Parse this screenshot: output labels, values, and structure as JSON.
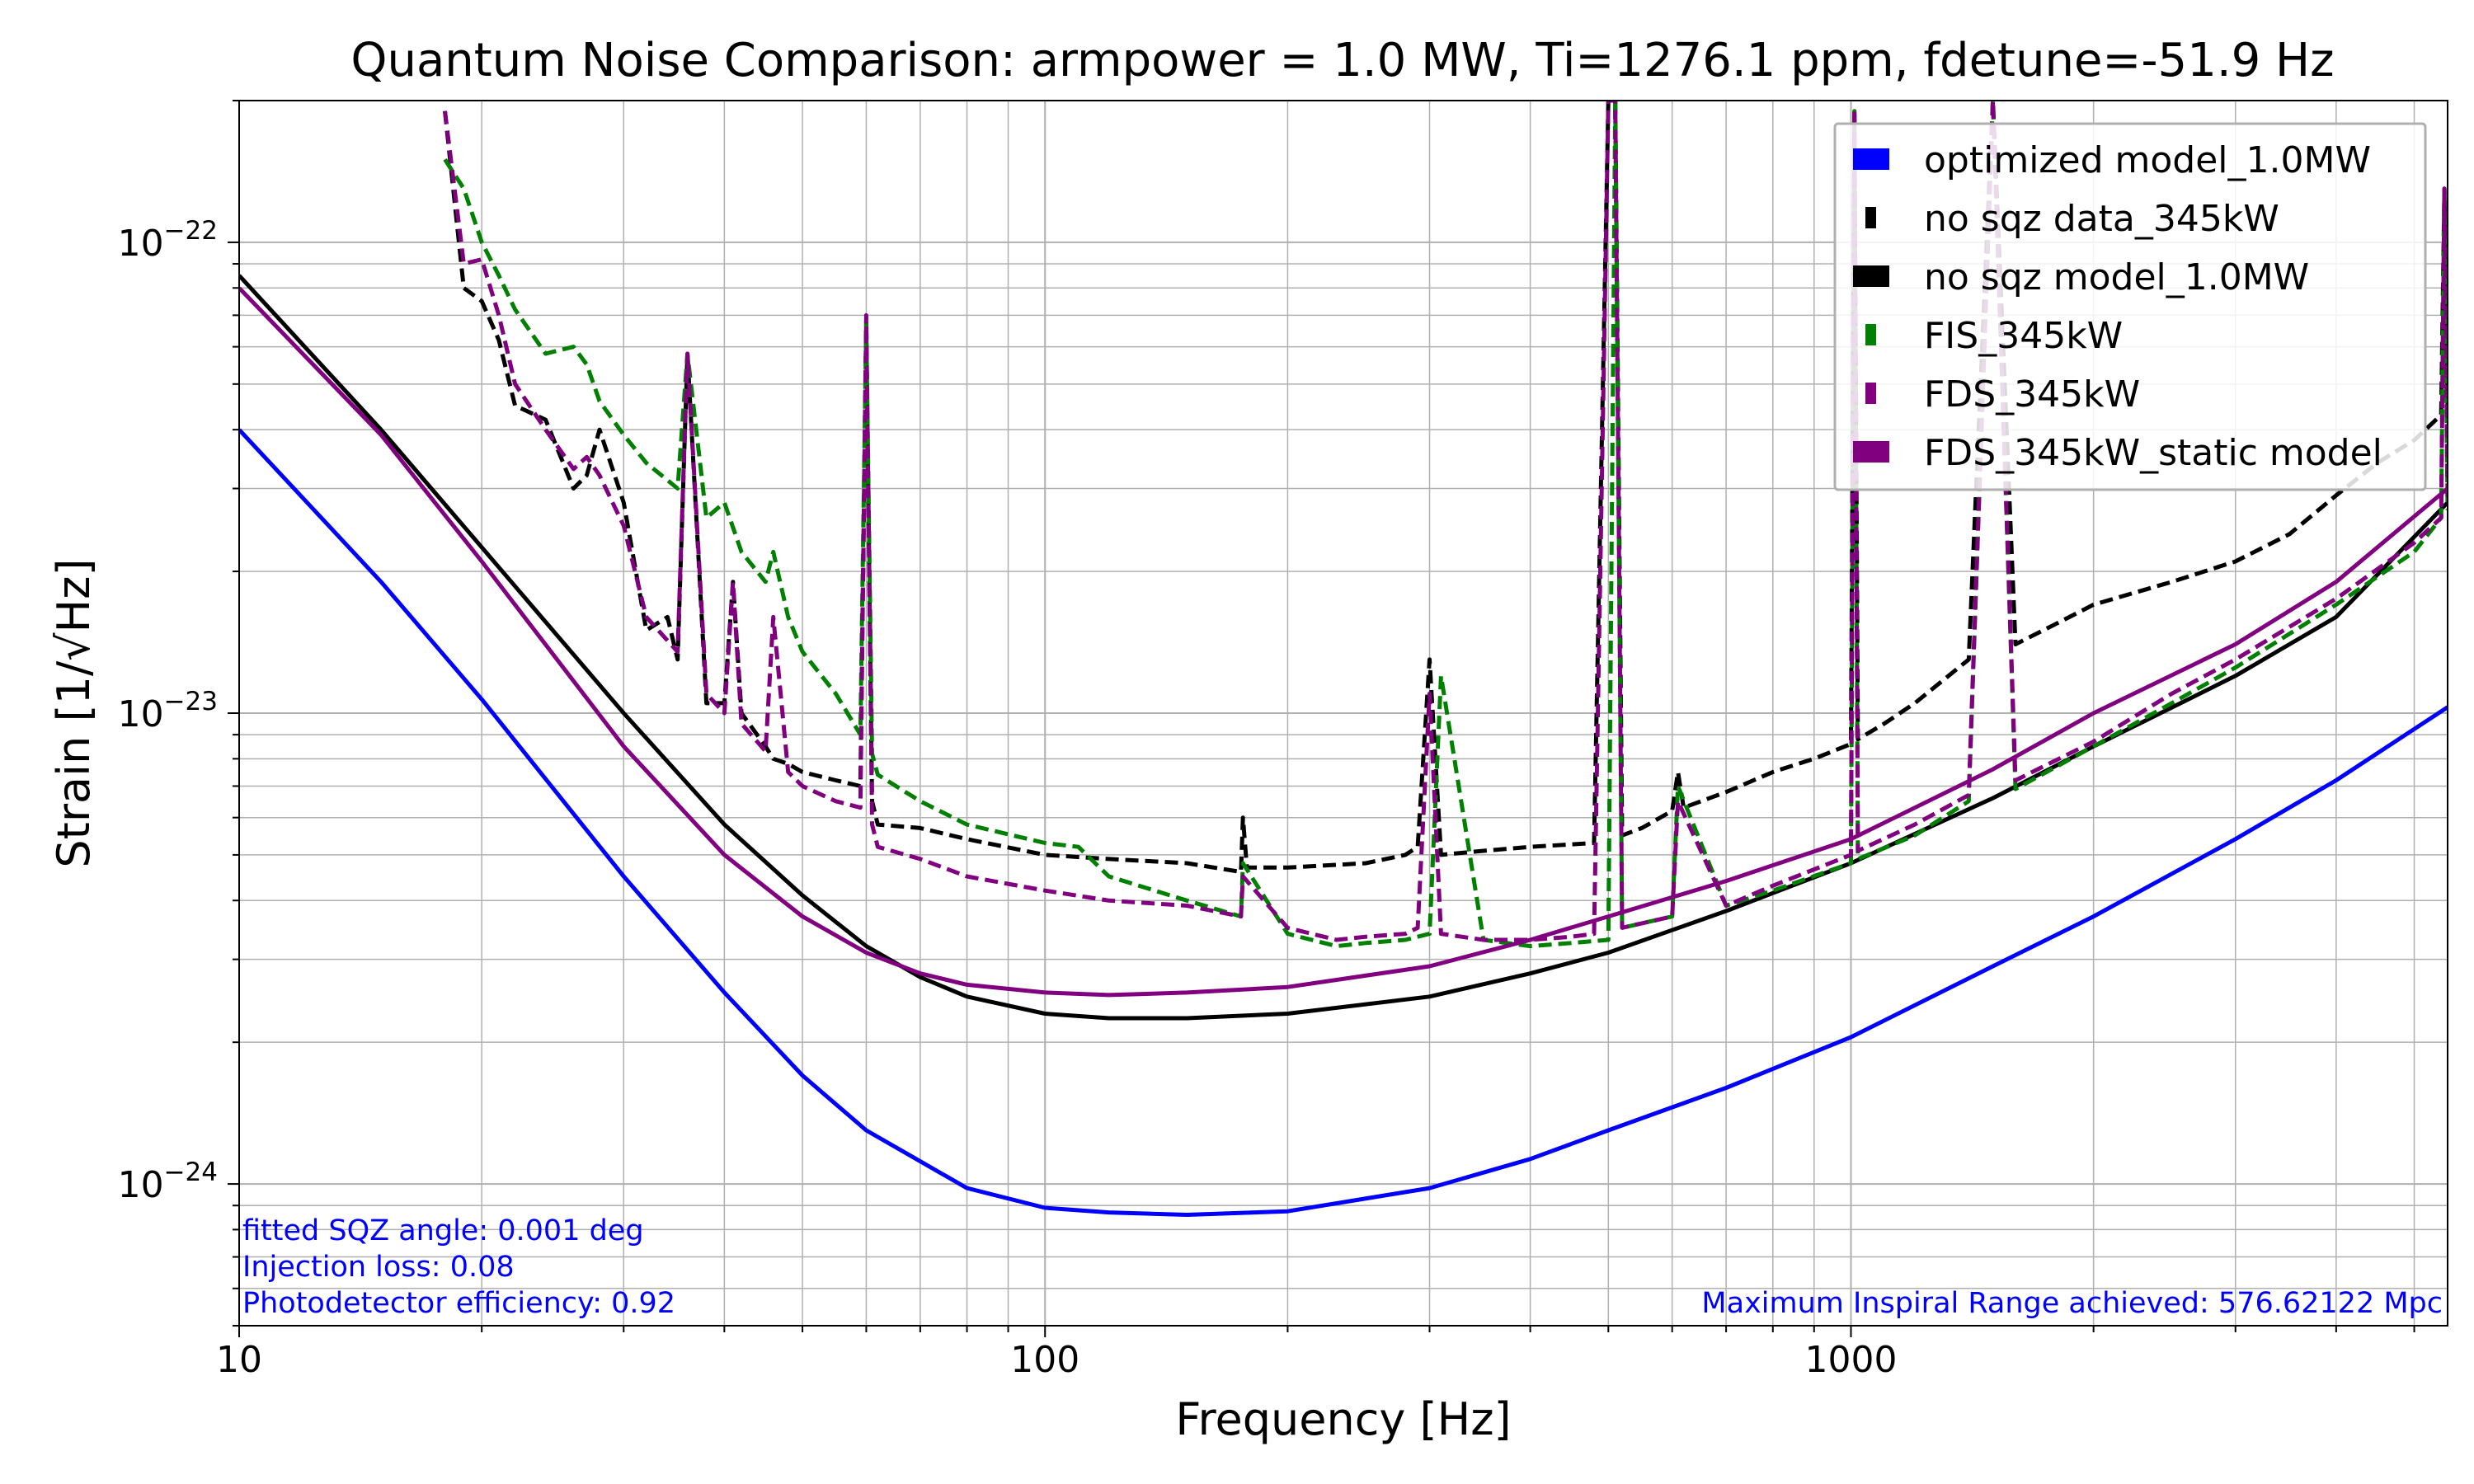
{
  "chart_data": {
    "type": "line",
    "title": "Quantum Noise Comparison: armpower = 1.0 MW, Ti=1276.1 ppm, fdetune=-51.9 Hz",
    "xlabel": "Frequency [Hz]",
    "ylabel": "Strain [1/√Hz]",
    "xscale": "log",
    "yscale": "log",
    "xlim": [
      10,
      5500
    ],
    "ylim": [
      5e-25,
      2e-22
    ],
    "grid": true,
    "legend_position": "top-right",
    "x_ticks": [
      {
        "value": 10,
        "label": "10"
      },
      {
        "value": 100,
        "label": "100"
      },
      {
        "value": 1000,
        "label": "1000"
      }
    ],
    "y_ticks": [
      {
        "value": 1e-24,
        "base": "10",
        "exp": "−24"
      },
      {
        "value": 1e-23,
        "base": "10",
        "exp": "−23"
      },
      {
        "value": 1e-22,
        "base": "10",
        "exp": "−22"
      }
    ],
    "series": [
      {
        "name": "optimized model_1.0MW",
        "color": "#0000ff",
        "style": "solid",
        "x": [
          10,
          15,
          20,
          30,
          40,
          50,
          60,
          80,
          100,
          120,
          150,
          200,
          300,
          400,
          500,
          700,
          1000,
          1500,
          2000,
          3000,
          4000,
          5500
        ],
        "y": [
          4e-23,
          1.9e-23,
          1.07e-23,
          4.5e-24,
          2.55e-24,
          1.7e-24,
          1.3e-24,
          9.8e-25,
          8.9e-25,
          8.7e-25,
          8.6e-25,
          8.75e-25,
          9.8e-25,
          1.13e-24,
          1.3e-24,
          1.6e-24,
          2.05e-24,
          2.9e-24,
          3.7e-24,
          5.4e-24,
          7.2e-24,
          1.03e-23
        ]
      },
      {
        "name": "no sqz data_345kW",
        "color": "#000000",
        "style": "dashed",
        "x": [
          18,
          19,
          20,
          21,
          22,
          24,
          26,
          27,
          28,
          30,
          32,
          34,
          35,
          36,
          38,
          40,
          41,
          42,
          45,
          46,
          48,
          50,
          55,
          59,
          60,
          61,
          62,
          70,
          80,
          100,
          120,
          150,
          175,
          176,
          178,
          200,
          250,
          280,
          290,
          300,
          310,
          350,
          400,
          480,
          500,
          510,
          520,
          550,
          600,
          610,
          620,
          700,
          800,
          900,
          1000,
          1010,
          1020,
          1100,
          1200,
          1400,
          1500,
          1600,
          1800,
          2000,
          2500,
          3000,
          3500,
          4000,
          4500,
          5000,
          5400,
          5450,
          5500
        ],
        "y": [
          1.9e-22,
          8e-23,
          7.5e-23,
          6.2e-23,
          4.5e-23,
          4.2e-23,
          3e-23,
          3.2e-23,
          4e-23,
          2.8e-23,
          1.5e-23,
          1.6e-23,
          1.3e-23,
          5.8e-23,
          1.05e-23,
          1.05e-23,
          1.9e-23,
          1e-23,
          8.5e-24,
          8e-24,
          7.8e-24,
          7.5e-24,
          7.2e-24,
          7e-24,
          6.7e-23,
          6.5e-24,
          5.8e-24,
          5.7e-24,
          5.4e-24,
          5e-24,
          4.9e-24,
          4.8e-24,
          4.6e-24,
          6e-24,
          4.7e-24,
          4.7e-24,
          4.8e-24,
          5e-24,
          5.2e-24,
          1.3e-23,
          5e-24,
          5.1e-24,
          5.2e-24,
          5.3e-24,
          2e-22,
          2e-22,
          5.5e-24,
          5.7e-24,
          6.2e-24,
          7.5e-24,
          6.3e-24,
          6.8e-24,
          7.5e-24,
          8e-24,
          8.6e-24,
          1.9e-22,
          8.8e-24,
          9.5e-24,
          1.05e-23,
          1.3e-23,
          2e-22,
          1.4e-23,
          1.55e-23,
          1.7e-23,
          1.9e-23,
          2.1e-23,
          2.4e-23,
          2.9e-23,
          3.4e-23,
          3.8e-23,
          4.3e-23,
          1.3e-22,
          4.5e-23
        ]
      },
      {
        "name": "no sqz model_1.0MW",
        "color": "#000000",
        "style": "solid",
        "x": [
          10,
          15,
          20,
          30,
          40,
          50,
          60,
          70,
          80,
          100,
          120,
          150,
          200,
          300,
          400,
          500,
          700,
          1000,
          1500,
          2000,
          3000,
          4000,
          5500
        ],
        "y": [
          8.5e-23,
          4e-23,
          2.25e-23,
          1e-23,
          5.8e-24,
          4.1e-24,
          3.2e-24,
          2.75e-24,
          2.5e-24,
          2.3e-24,
          2.25e-24,
          2.25e-24,
          2.3e-24,
          2.5e-24,
          2.8e-24,
          3.1e-24,
          3.8e-24,
          4.8e-24,
          6.6e-24,
          8.5e-24,
          1.2e-23,
          1.6e-23,
          2.8e-23
        ]
      },
      {
        "name": "FIS_345kW",
        "color": "#008000",
        "style": "dashed",
        "x": [
          18,
          19,
          20,
          21,
          22,
          24,
          26,
          27,
          28,
          30,
          32,
          35,
          36,
          38,
          40,
          42,
          45,
          46,
          48,
          50,
          55,
          59,
          60,
          61,
          62,
          70,
          80,
          100,
          110,
          120,
          150,
          175,
          176,
          200,
          230,
          250,
          280,
          300,
          310,
          350,
          400,
          450,
          500,
          510,
          520,
          600,
          610,
          700,
          800,
          1000,
          1010,
          1020,
          1200,
          1400,
          1500,
          1600,
          2000,
          2500,
          3000,
          4000,
          5000,
          5400,
          5450,
          5500
        ],
        "y": [
          1.5e-22,
          1.3e-22,
          1e-22,
          8.5e-23,
          7.2e-23,
          5.8e-23,
          6e-23,
          5.5e-23,
          4.6e-23,
          3.9e-23,
          3.4e-23,
          3e-23,
          5.8e-23,
          2.6e-23,
          2.8e-23,
          2.2e-23,
          1.9e-23,
          2.2e-23,
          1.6e-23,
          1.35e-23,
          1.1e-23,
          9e-24,
          6.8e-23,
          8.2e-24,
          7.4e-24,
          6.5e-24,
          5.8e-24,
          5.3e-24,
          5.2e-24,
          4.5e-24,
          4e-24,
          3.7e-24,
          4.8e-24,
          3.4e-24,
          3.2e-24,
          3.25e-24,
          3.3e-24,
          3.4e-24,
          1.2e-23,
          3.3e-24,
          3.2e-24,
          3.25e-24,
          3.3e-24,
          2e-22,
          3.5e-24,
          3.7e-24,
          7e-24,
          3.9e-24,
          4.2e-24,
          4.8e-24,
          1.9e-22,
          4.9e-24,
          5.5e-24,
          6.5e-24,
          2e-22,
          6.9e-24,
          8.5e-24,
          1.05e-23,
          1.25e-23,
          1.7e-23,
          2.2e-23,
          2.6e-23,
          1.3e-22,
          2.7e-23
        ]
      },
      {
        "name": "FDS_345kW",
        "color": "#800080",
        "style": "dashed",
        "x": [
          18,
          19,
          20,
          21,
          22,
          24,
          26,
          27,
          28,
          30,
          32,
          35,
          36,
          38,
          40,
          41,
          42,
          45,
          46,
          48,
          50,
          55,
          59,
          60,
          61,
          62,
          70,
          80,
          100,
          120,
          150,
          175,
          176,
          200,
          230,
          250,
          280,
          290,
          300,
          310,
          350,
          400,
          450,
          480,
          500,
          510,
          520,
          600,
          610,
          700,
          800,
          1000,
          1010,
          1020,
          1200,
          1400,
          1500,
          1600,
          2000,
          2500,
          3000,
          4000,
          5000,
          5400,
          5450,
          5500
        ],
        "y": [
          1.9e-22,
          9e-23,
          9.2e-23,
          7e-23,
          5e-23,
          4e-23,
          3.3e-23,
          3.5e-23,
          3.2e-23,
          2.5e-23,
          1.6e-23,
          1.35e-23,
          5.8e-23,
          1.1e-23,
          1e-23,
          1.9e-23,
          9.5e-24,
          8.3e-24,
          1.6e-23,
          7.5e-24,
          7e-24,
          6.5e-24,
          6.3e-24,
          7e-23,
          5.8e-24,
          5.2e-24,
          4.9e-24,
          4.5e-24,
          4.2e-24,
          4e-24,
          3.9e-24,
          3.7e-24,
          4.5e-24,
          3.5e-24,
          3.3e-24,
          3.35e-24,
          3.4e-24,
          3.5e-24,
          1.1e-23,
          3.4e-24,
          3.3e-24,
          3.3e-24,
          3.35e-24,
          3.4e-24,
          2e-22,
          2e-22,
          3.5e-24,
          3.7e-24,
          6.5e-24,
          3.9e-24,
          4.3e-24,
          5e-24,
          1.9e-22,
          5.1e-24,
          5.8e-24,
          6.7e-24,
          2e-22,
          7.2e-24,
          8.7e-24,
          1.1e-23,
          1.3e-23,
          1.75e-23,
          2.3e-23,
          2.6e-23,
          1.3e-22,
          2.8e-23
        ]
      },
      {
        "name": "FDS_345kW_static model",
        "color": "#800080",
        "style": "solid",
        "x": [
          10,
          15,
          20,
          30,
          40,
          50,
          60,
          70,
          80,
          100,
          120,
          150,
          200,
          300,
          400,
          500,
          700,
          1000,
          1500,
          2000,
          3000,
          4000,
          5500
        ],
        "y": [
          8e-23,
          3.9e-23,
          2.1e-23,
          8.5e-24,
          5e-24,
          3.7e-24,
          3.1e-24,
          2.8e-24,
          2.65e-24,
          2.55e-24,
          2.52e-24,
          2.55e-24,
          2.62e-24,
          2.9e-24,
          3.3e-24,
          3.7e-24,
          4.4e-24,
          5.4e-24,
          7.6e-24,
          1e-23,
          1.4e-23,
          1.9e-23,
          3e-23
        ]
      }
    ],
    "annotations": {
      "sqz_angle": "fitted SQZ angle: 0.001 deg",
      "injection_loss": "Injection loss: 0.08",
      "pd_efficiency": "Photodetector efficiency: 0.92",
      "inspiral_range": "Maximum Inspiral Range achieved: 576.62122 Mpc",
      "color": "#0000ff"
    }
  }
}
